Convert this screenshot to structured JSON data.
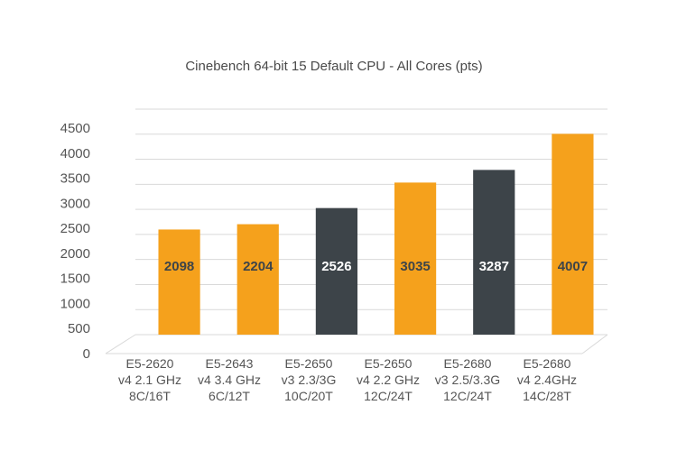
{
  "chart_data": {
    "type": "bar",
    "title": "Cinebench 64-bit 15 Default CPU - All Cores (pts)",
    "xlabel": "",
    "ylabel": "",
    "ylim": [
      0,
      4500
    ],
    "yticks": [
      0,
      500,
      1000,
      1500,
      2000,
      2500,
      3000,
      3500,
      4000,
      4500
    ],
    "grid": true,
    "legend": "none",
    "style": "3d-perspective",
    "categories": [
      [
        "E5-2620",
        "v4 2.1 GHz",
        "8C/16T"
      ],
      [
        "E5-2643",
        "v4 3.4 GHz",
        "6C/12T"
      ],
      [
        "E5-2650",
        "v3 2.3/3G",
        "10C/20T"
      ],
      [
        "E5-2650",
        "v4 2.2 GHz",
        "12C/24T"
      ],
      [
        "E5-2680",
        "v3 2.5/3.3G",
        "12C/24T"
      ],
      [
        "E5-2680",
        "v4 2.4GHz",
        "14C/28T"
      ]
    ],
    "values": [
      2098,
      2204,
      2526,
      3035,
      3287,
      4007
    ],
    "bar_colors": [
      "#f5a11c",
      "#f5a11c",
      "#3d4449",
      "#f5a11c",
      "#3d4449",
      "#f5a11c"
    ],
    "label_colors": [
      "#3d4449",
      "#3d4449",
      "#ffffff",
      "#3d4449",
      "#ffffff",
      "#3d4449"
    ]
  }
}
